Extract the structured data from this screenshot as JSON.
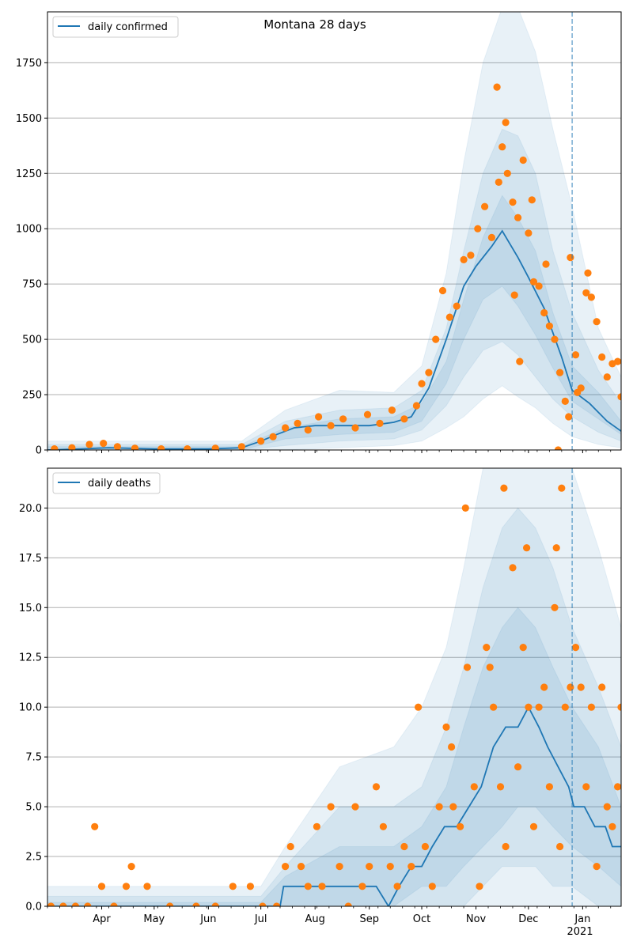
{
  "title": "Montana 28 days",
  "colors": {
    "line": "#1f77b4",
    "points": "#ff7f0e",
    "band": "#1f77b4",
    "grid": "#b0b0b0"
  },
  "chart_data": [
    {
      "type": "line",
      "name": "top",
      "title": "Montana 28 days",
      "legend": "daily confirmed",
      "legend_position": "top-left",
      "grid": "horizontal",
      "x_range": [
        "2020-03-01",
        "2021-01-23"
      ],
      "ylim": [
        0,
        1980
      ],
      "y_ticks": [
        0,
        250,
        500,
        750,
        1000,
        1250,
        1500,
        1750
      ],
      "y_tick_labels": [
        "0",
        "250",
        "500",
        "750",
        "1000",
        "1250",
        "1500",
        "1750"
      ],
      "forecast_start": "2020-12-26",
      "line": {
        "x": [
          "2020-03-01",
          "2020-03-20",
          "2020-04-05",
          "2020-05-01",
          "2020-06-01",
          "2020-06-20",
          "2020-07-01",
          "2020-07-10",
          "2020-07-20",
          "2020-08-01",
          "2020-08-15",
          "2020-09-01",
          "2020-09-15",
          "2020-09-25",
          "2020-10-05",
          "2020-10-15",
          "2020-10-25",
          "2020-11-01",
          "2020-11-10",
          "2020-11-16",
          "2020-11-25",
          "2020-12-01",
          "2020-12-10",
          "2020-12-20",
          "2020-12-26",
          "2021-01-05",
          "2021-01-15",
          "2021-01-23"
        ],
        "y": [
          0,
          5,
          10,
          5,
          5,
          10,
          40,
          70,
          100,
          110,
          110,
          110,
          125,
          150,
          280,
          500,
          740,
          830,
          920,
          990,
          870,
          780,
          640,
          420,
          270,
          210,
          130,
          85
        ]
      },
      "points": {
        "x": [
          "2020-03-05",
          "2020-03-15",
          "2020-03-25",
          "2020-04-02",
          "2020-04-10",
          "2020-04-20",
          "2020-05-05",
          "2020-05-20",
          "2020-06-05",
          "2020-06-20",
          "2020-07-01",
          "2020-07-08",
          "2020-07-15",
          "2020-07-22",
          "2020-07-28",
          "2020-08-03",
          "2020-08-10",
          "2020-08-17",
          "2020-08-24",
          "2020-08-31",
          "2020-09-07",
          "2020-09-14",
          "2020-09-21",
          "2020-09-28",
          "2020-10-01",
          "2020-10-05",
          "2020-10-09",
          "2020-10-13",
          "2020-10-17",
          "2020-10-21",
          "2020-10-25",
          "2020-10-29",
          "2020-11-02",
          "2020-11-06",
          "2020-11-10",
          "2020-11-13",
          "2020-11-16",
          "2020-11-19",
          "2020-11-22",
          "2020-11-25",
          "2020-11-28",
          "2020-12-01",
          "2020-12-04",
          "2020-12-07",
          "2020-12-10",
          "2020-12-13",
          "2020-12-16",
          "2020-12-19",
          "2020-12-22",
          "2020-12-25",
          "2020-12-28",
          "2020-12-31",
          "2021-01-03",
          "2021-01-06",
          "2021-01-09",
          "2021-01-12",
          "2021-01-15",
          "2021-01-18",
          "2021-01-21",
          "2020-11-14",
          "2020-11-18",
          "2020-11-23",
          "2020-11-26",
          "2020-12-03",
          "2020-12-11",
          "2020-12-24",
          "2020-12-29",
          "2021-01-04",
          "2020-12-18",
          "2021-01-23"
        ],
        "y": [
          5,
          10,
          25,
          30,
          15,
          8,
          5,
          5,
          8,
          15,
          40,
          60,
          100,
          120,
          90,
          150,
          110,
          140,
          100,
          160,
          120,
          180,
          140,
          200,
          300,
          350,
          500,
          720,
          600,
          650,
          860,
          880,
          1000,
          1100,
          960,
          1640,
          1370,
          1250,
          1120,
          1050,
          1310,
          980,
          760,
          740,
          620,
          560,
          500,
          350,
          220,
          870,
          430,
          280,
          710,
          690,
          580,
          420,
          330,
          390,
          400,
          1210,
          1480,
          700,
          400,
          1130,
          840,
          150,
          260,
          800,
          0,
          240
        ]
      },
      "bands": [
        {
          "name": "outer",
          "x": [
            "2020-03-01",
            "2020-06-20",
            "2020-07-15",
            "2020-08-15",
            "2020-09-15",
            "2020-10-01",
            "2020-10-15",
            "2020-10-25",
            "2020-11-05",
            "2020-11-16",
            "2020-11-25",
            "2020-12-05",
            "2020-12-15",
            "2020-12-26",
            "2021-01-10",
            "2021-01-23"
          ],
          "lo": [
            0,
            0,
            0,
            10,
            20,
            40,
            100,
            150,
            230,
            290,
            240,
            190,
            120,
            60,
            25,
            10
          ],
          "hi": [
            40,
            40,
            180,
            270,
            260,
            380,
            800,
            1300,
            1750,
            2000,
            2000,
            1800,
            1450,
            1100,
            550,
            330
          ]
        },
        {
          "name": "middle",
          "x": [
            "2020-03-01",
            "2020-06-20",
            "2020-07-15",
            "2020-08-15",
            "2020-09-15",
            "2020-10-01",
            "2020-10-15",
            "2020-10-25",
            "2020-11-05",
            "2020-11-16",
            "2020-11-25",
            "2020-12-05",
            "2020-12-15",
            "2020-12-26",
            "2021-01-10",
            "2021-01-23"
          ],
          "lo": [
            0,
            0,
            20,
            40,
            50,
            90,
            200,
            330,
            450,
            490,
            430,
            330,
            230,
            150,
            80,
            40
          ],
          "hi": [
            25,
            25,
            130,
            180,
            190,
            270,
            550,
            900,
            1250,
            1450,
            1420,
            1250,
            900,
            620,
            360,
            210
          ]
        },
        {
          "name": "inner",
          "x": [
            "2020-03-01",
            "2020-06-20",
            "2020-07-15",
            "2020-08-15",
            "2020-09-15",
            "2020-10-01",
            "2020-10-15",
            "2020-10-25",
            "2020-11-05",
            "2020-11-16",
            "2020-11-25",
            "2020-12-05",
            "2020-12-15",
            "2020-12-26",
            "2021-01-10",
            "2021-01-23"
          ],
          "lo": [
            0,
            0,
            50,
            70,
            80,
            130,
            300,
            500,
            680,
            740,
            650,
            520,
            370,
            220,
            140,
            70
          ],
          "hi": [
            15,
            15,
            100,
            140,
            150,
            210,
            400,
            680,
            960,
            1150,
            1050,
            900,
            620,
            380,
            260,
            130
          ]
        }
      ]
    },
    {
      "type": "line",
      "name": "bottom",
      "legend": "daily deaths",
      "legend_position": "top-left",
      "grid": "horizontal",
      "x_range": [
        "2020-03-01",
        "2021-01-23"
      ],
      "ylim": [
        0,
        22
      ],
      "y_ticks": [
        0,
        2.5,
        5,
        7.5,
        10,
        12.5,
        15,
        17.5,
        20
      ],
      "y_tick_labels": [
        "0.0",
        "2.5",
        "5.0",
        "7.5",
        "10.0",
        "12.5",
        "15.0",
        "17.5",
        "20.0"
      ],
      "x_ticks": [
        "2020-04-01",
        "2020-05-01",
        "2020-06-01",
        "2020-07-01",
        "2020-08-01",
        "2020-09-01",
        "2020-10-01",
        "2020-11-01",
        "2020-12-01",
        "2021-01-01"
      ],
      "x_tick_labels": [
        "Apr",
        "May",
        "Jun",
        "Jul",
        "Aug",
        "Sep",
        "Oct",
        "Nov",
        "Dec",
        "Jan"
      ],
      "x_year_label": "2021",
      "forecast_start": "2020-12-26",
      "line": {
        "x": [
          "2020-03-01",
          "2020-07-12",
          "2020-07-14",
          "2020-07-20",
          "2020-08-01",
          "2020-09-05",
          "2020-09-12",
          "2020-09-18",
          "2020-09-25",
          "2020-10-01",
          "2020-10-07",
          "2020-10-14",
          "2020-10-21",
          "2020-10-28",
          "2020-11-04",
          "2020-11-11",
          "2020-11-18",
          "2020-11-25",
          "2020-12-01",
          "2020-12-07",
          "2020-12-12",
          "2020-12-18",
          "2020-12-24",
          "2020-12-27",
          "2021-01-02",
          "2021-01-08",
          "2021-01-14",
          "2021-01-18",
          "2021-01-23"
        ],
        "y": [
          0,
          0,
          1,
          1,
          1,
          1,
          0,
          1,
          2,
          2,
          3,
          4,
          4,
          5,
          6,
          8,
          9,
          9,
          10,
          9,
          8,
          7,
          6,
          5,
          5,
          4,
          4,
          3,
          3
        ]
      },
      "points": {
        "x": [
          "2020-03-03",
          "2020-03-10",
          "2020-03-17",
          "2020-03-24",
          "2020-03-28",
          "2020-04-01",
          "2020-04-08",
          "2020-04-15",
          "2020-04-18",
          "2020-04-27",
          "2020-05-10",
          "2020-05-25",
          "2020-06-05",
          "2020-06-15",
          "2020-06-25",
          "2020-07-02",
          "2020-07-10",
          "2020-07-15",
          "2020-07-18",
          "2020-07-24",
          "2020-07-28",
          "2020-08-02",
          "2020-08-05",
          "2020-08-10",
          "2020-08-15",
          "2020-08-20",
          "2020-08-24",
          "2020-08-28",
          "2020-09-01",
          "2020-09-05",
          "2020-09-09",
          "2020-09-13",
          "2020-09-17",
          "2020-09-21",
          "2020-09-25",
          "2020-09-29",
          "2020-10-03",
          "2020-10-07",
          "2020-10-11",
          "2020-10-15",
          "2020-10-19",
          "2020-10-23",
          "2020-10-27",
          "2020-10-31",
          "2020-11-03",
          "2020-11-07",
          "2020-11-11",
          "2020-11-15",
          "2020-11-18",
          "2020-11-22",
          "2020-11-25",
          "2020-11-28",
          "2020-12-01",
          "2020-12-04",
          "2020-12-07",
          "2020-12-10",
          "2020-12-13",
          "2020-12-16",
          "2020-12-19",
          "2020-12-22",
          "2020-12-25",
          "2020-12-28",
          "2020-12-31",
          "2021-01-03",
          "2021-01-06",
          "2021-01-09",
          "2021-01-12",
          "2021-01-15",
          "2021-01-18",
          "2021-01-21",
          "2020-10-26",
          "2020-11-17",
          "2020-12-17",
          "2020-12-20",
          "2020-11-09",
          "2020-11-30",
          "2020-10-18",
          "2021-01-23"
        ],
        "y": [
          0,
          0,
          0,
          0,
          4,
          1,
          0,
          1,
          2,
          1,
          0,
          0,
          0,
          1,
          1,
          0,
          0,
          2,
          3,
          2,
          1,
          4,
          1,
          5,
          2,
          0,
          5,
          1,
          2,
          6,
          4,
          2,
          1,
          3,
          2,
          10,
          3,
          1,
          5,
          9,
          5,
          4,
          12,
          6,
          1,
          13,
          10,
          6,
          3,
          17,
          7,
          13,
          10,
          4,
          10,
          11,
          6,
          15,
          3,
          10,
          11,
          13,
          11,
          6,
          10,
          2,
          11,
          5,
          4,
          6,
          20,
          21,
          18,
          21,
          12,
          18,
          8,
          10
        ]
      },
      "bands": [
        {
          "name": "outer",
          "x": [
            "2020-03-01",
            "2020-07-01",
            "2020-07-15",
            "2020-08-15",
            "2020-09-15",
            "2020-10-01",
            "2020-10-15",
            "2020-10-25",
            "2020-11-05",
            "2020-11-16",
            "2020-11-25",
            "2020-12-05",
            "2020-12-15",
            "2020-12-26",
            "2021-01-10",
            "2021-01-23"
          ],
          "lo": [
            0,
            0,
            0,
            0,
            0,
            0,
            0,
            0,
            0,
            0,
            0,
            0,
            0,
            0,
            0,
            0
          ],
          "hi": [
            1,
            1,
            3,
            7,
            8,
            10,
            13,
            17,
            22,
            22,
            22,
            22,
            22,
            22,
            18,
            14
          ]
        },
        {
          "name": "middle",
          "x": [
            "2020-03-01",
            "2020-07-01",
            "2020-07-15",
            "2020-08-15",
            "2020-09-15",
            "2020-10-01",
            "2020-10-15",
            "2020-10-25",
            "2020-11-05",
            "2020-11-16",
            "2020-11-25",
            "2020-12-05",
            "2020-12-15",
            "2020-12-26",
            "2021-01-10",
            "2021-01-23"
          ],
          "lo": [
            0,
            0,
            0,
            0,
            0,
            0,
            0,
            0,
            1,
            2,
            2,
            2,
            1,
            1,
            0,
            0
          ],
          "hi": [
            0.5,
            0.5,
            2,
            5,
            5,
            6,
            9,
            12,
            16,
            19,
            20,
            19,
            17,
            14,
            11,
            8
          ]
        },
        {
          "name": "inner",
          "x": [
            "2020-03-01",
            "2020-07-01",
            "2020-07-15",
            "2020-08-15",
            "2020-09-15",
            "2020-10-01",
            "2020-10-15",
            "2020-10-25",
            "2020-11-05",
            "2020-11-16",
            "2020-11-25",
            "2020-12-05",
            "2020-12-15",
            "2020-12-26",
            "2021-01-10",
            "2021-01-23"
          ],
          "lo": [
            0,
            0,
            0,
            0,
            0,
            1,
            1,
            2,
            3,
            4,
            5,
            5,
            4,
            3,
            2,
            1
          ],
          "hi": [
            0.2,
            0.2,
            1.5,
            3,
            3,
            4,
            6,
            9,
            12,
            14,
            15,
            14,
            12,
            10,
            8,
            5
          ]
        }
      ]
    }
  ]
}
